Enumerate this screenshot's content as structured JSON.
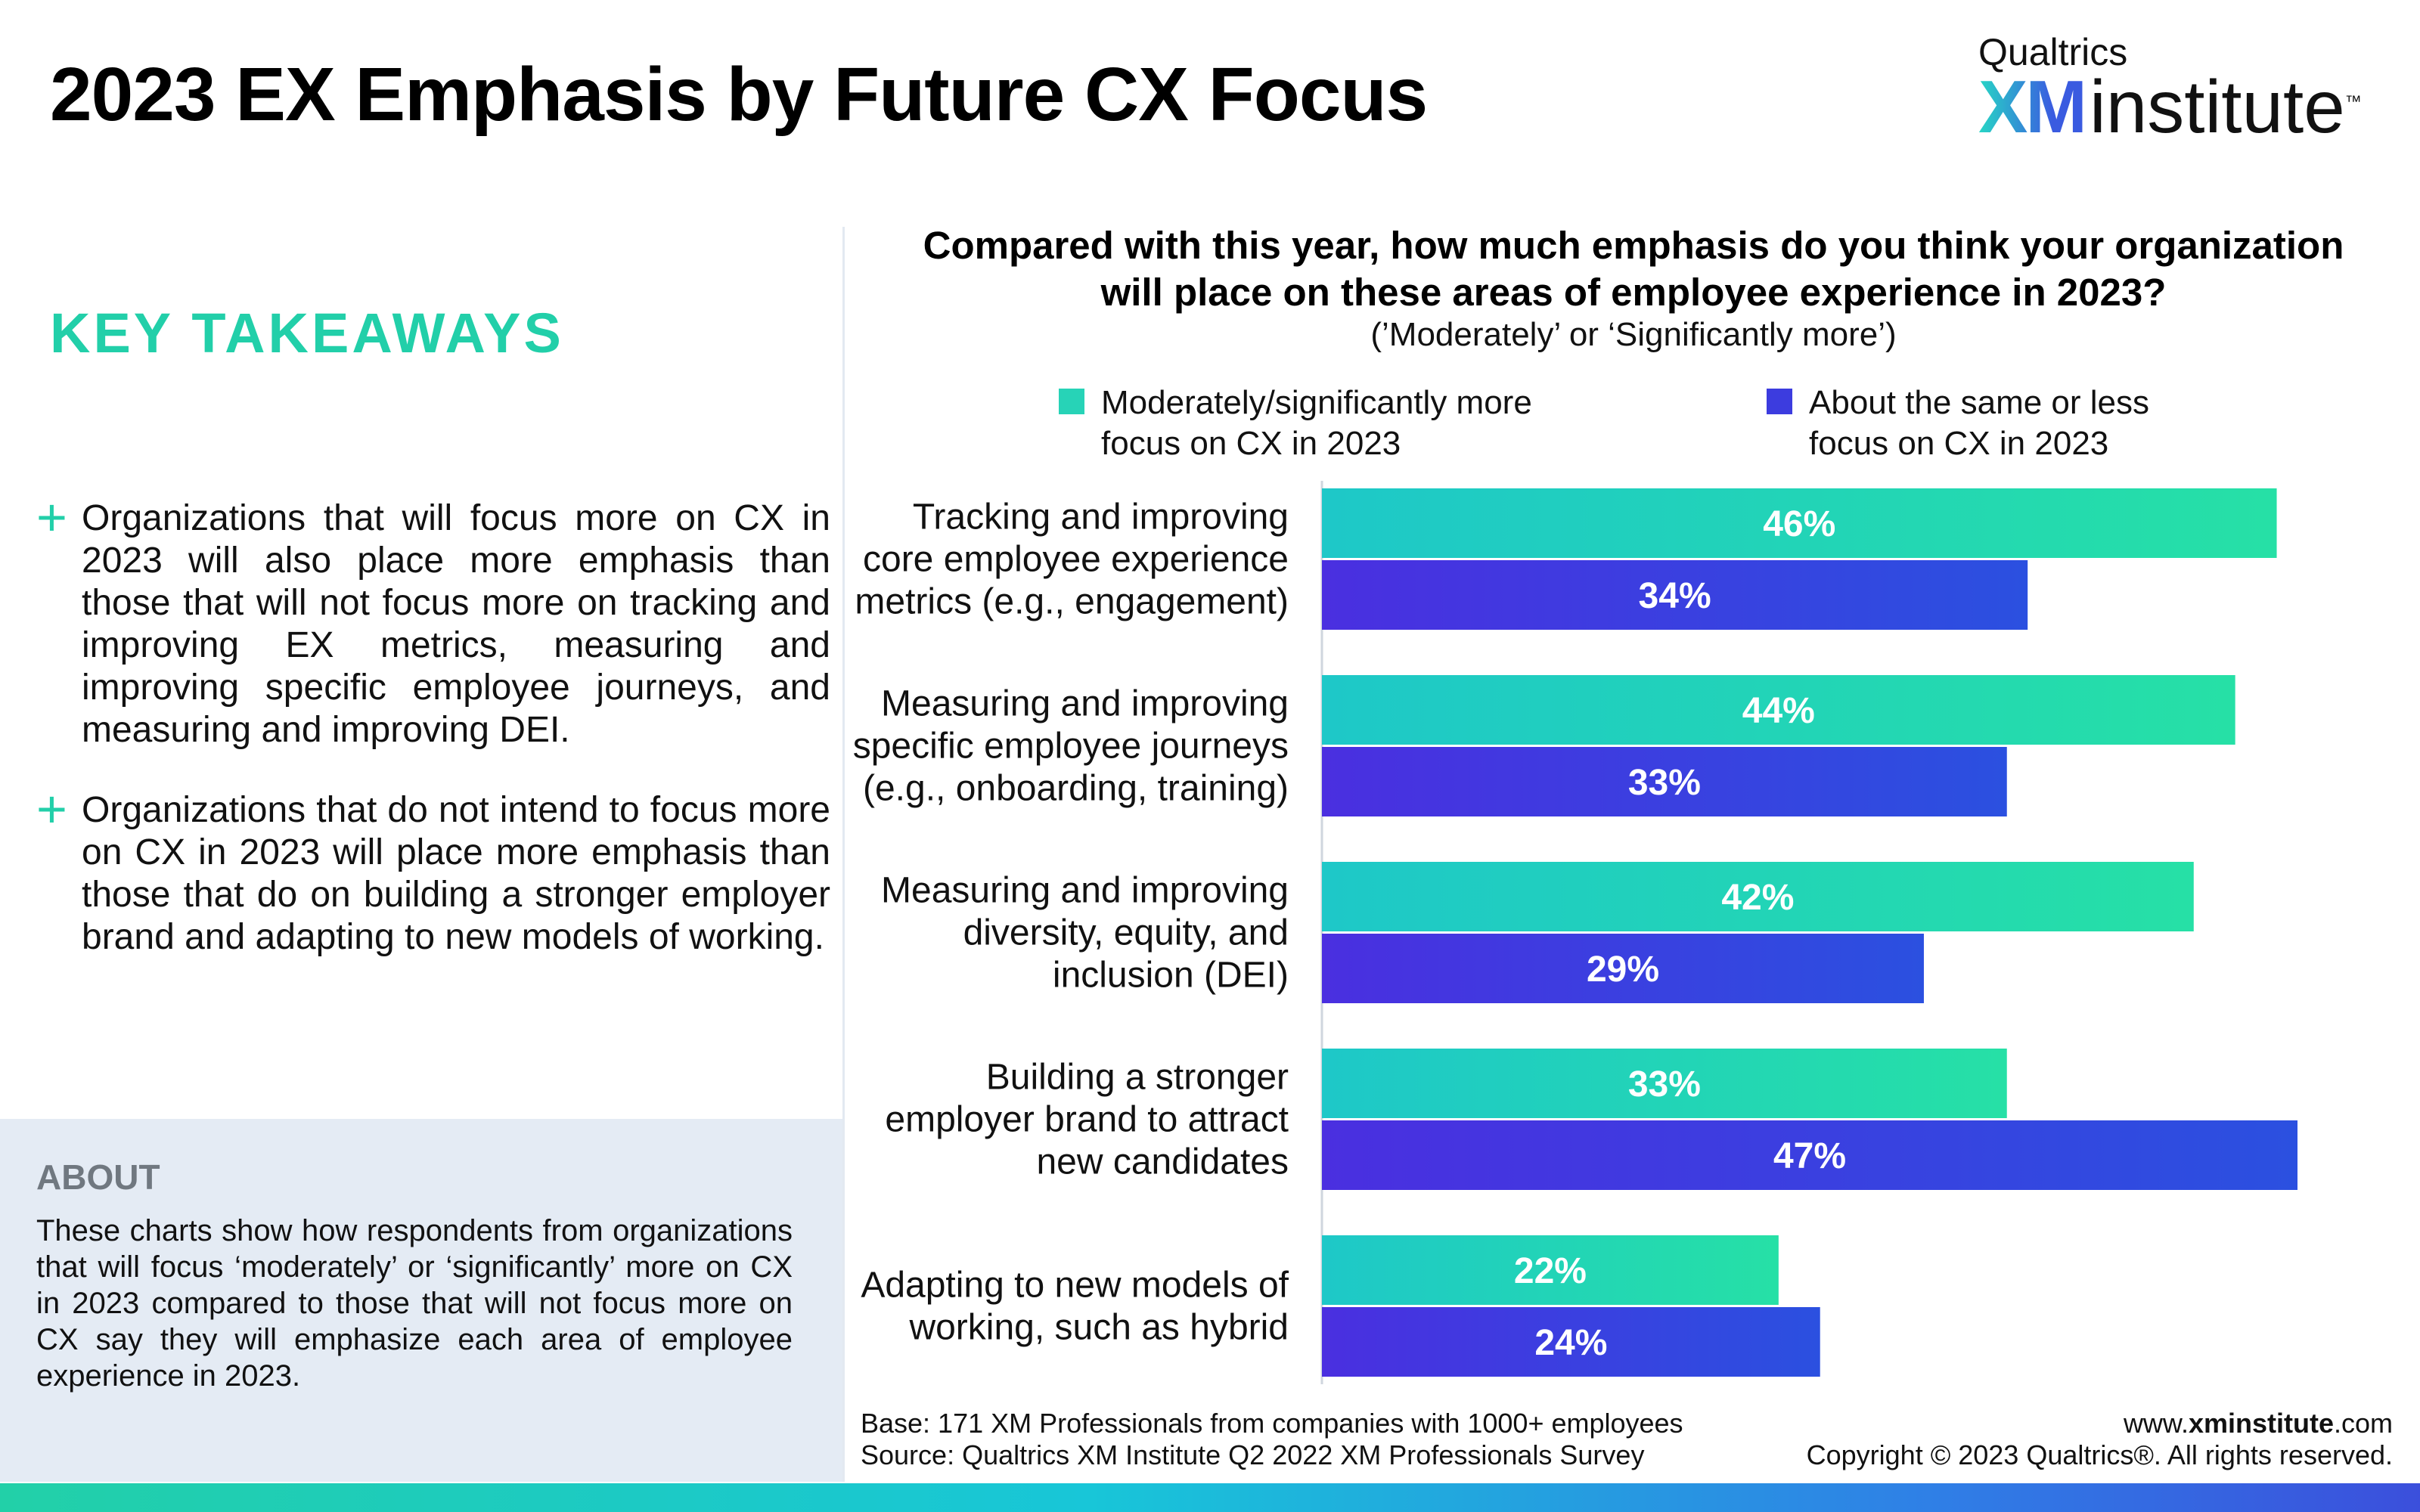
{
  "header": {
    "title": "2023 EX Emphasis by Future CX Focus",
    "logo_top": "Qualtrics",
    "logo_xm": "XM",
    "logo_institute": "institute",
    "logo_tm": "™"
  },
  "takeaways": {
    "heading": "KEY TAKEAWAYS",
    "plus_symbol": "+",
    "items": [
      "Organizations that will focus more on CX in 2023 will also place more emphasis than those that will not focus more on tracking and improving EX metrics, measuring and improving specific employee journeys, and measuring and improving DEI.",
      "Organizations that do not intend to focus more on CX in 2023 will place more emphasis than those that do on building a stronger employer brand and adapting to new models of working."
    ]
  },
  "about": {
    "heading": "ABOUT",
    "text": "These charts show how respondents from organizations that will focus ‘moderately’ or ‘significantly’ more on CX in 2023 compared to those that will not focus more on CX say they will emphasize each area of employee experience in 2023."
  },
  "chart_data": {
    "type": "bar",
    "orientation": "horizontal",
    "title": "Compared with this year, how much emphasis do you think your organization will place on these areas of employee experience in 2023?",
    "subtitle": "(’Moderately’ or ‘Significantly more’)",
    "categories": [
      "Tracking and improving core employee experience metrics (e.g., engagement)",
      "Measuring and improving specific employee journeys (e.g., onboarding, training)",
      "Measuring and improving diversity, equity, and inclusion (DEI)",
      "Building a stronger employer brand to attract new candidates",
      "Adapting to new models of working, such as hybrid"
    ],
    "category_lines": [
      [
        "Tracking and improving",
        "core employee experience",
        "metrics (e.g., engagement)"
      ],
      [
        "Measuring and improving",
        "specific employee journeys",
        "(e.g., onboarding, training)"
      ],
      [
        "Measuring and improving",
        "diversity, equity, and",
        "inclusion (DEI)"
      ],
      [
        "Building a stronger",
        "employer brand to attract",
        "new candidates"
      ],
      [
        "Adapting to new models of",
        "working, such as hybrid"
      ]
    ],
    "series": [
      {
        "name": "Moderately/significantly more focus on CX in 2023",
        "values": [
          46,
          44,
          42,
          33,
          22
        ],
        "color_start": "#1ec8c8",
        "color_end": "#26e0a6"
      },
      {
        "name": "About the same or less focus on CX in 2023",
        "values": [
          34,
          33,
          29,
          47,
          24
        ],
        "color_start": "#4a2fe0",
        "color_end": "#2b50e0"
      }
    ],
    "value_suffix": "%",
    "xlim": [
      0,
      47
    ],
    "legend_position": "top",
    "legend_lines": [
      [
        "Moderately/significantly more",
        "focus on CX in 2023"
      ],
      [
        "About the same or less",
        "focus on CX in 2023"
      ]
    ],
    "grid": false
  },
  "footer": {
    "base": "Base: 171 XM Professionals from companies with 1000+ employees",
    "source": "Source: Qualtrics XM Institute Q2 2022 XM Professionals Survey",
    "url_prefix": "www.",
    "url_bold": "xminstitute",
    "url_suffix": ".com",
    "copyright": "Copyright © 2023 Qualtrics®. All rights reserved."
  }
}
